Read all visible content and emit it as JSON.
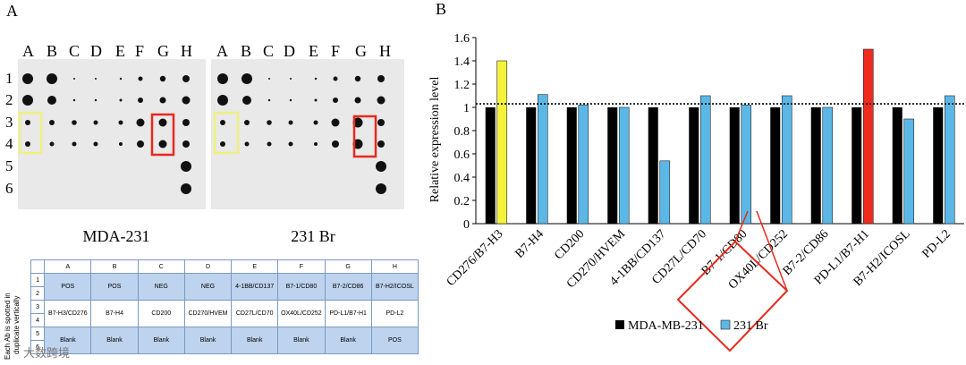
{
  "panel_a": {
    "letter": "A",
    "columns": [
      "A",
      "B",
      "C",
      "D",
      "E",
      "F",
      "G",
      "H"
    ],
    "rows": [
      "1",
      "2",
      "3",
      "4",
      "5",
      "6"
    ],
    "blot_left_label": "MDA-231",
    "blot_right_label": "231 Br"
  },
  "panel_b": {
    "letter": "B"
  },
  "table": {
    "side_label_line1": "Each Ab is spotted in",
    "side_label_line2": "duplicate vertically",
    "headers": [
      "A",
      "B",
      "C",
      "D",
      "E",
      "F",
      "G",
      "H"
    ],
    "rows": [
      {
        "num": "1",
        "cells": [
          "POS",
          "POS",
          "NEG",
          "NEG",
          "4-1BB/CD137",
          "B7-1/CD80",
          "B7-2/CD86",
          "B7-H2/ICOSL"
        ]
      },
      {
        "num": "2",
        "cells": [
          "",
          "",
          "",
          "",
          "",
          "",
          "",
          ""
        ]
      },
      {
        "num": "3",
        "cells": [
          "B7-H3/CD276",
          "B7-H4",
          "CD200",
          "CD270/HVEM",
          "CD27L/CD70",
          "OX40L/CD252",
          "PD-L1/B7-H1",
          "PD-L2"
        ]
      },
      {
        "num": "4",
        "cells": [
          "",
          "",
          "",
          "",
          "",
          "",
          "",
          ""
        ]
      },
      {
        "num": "5",
        "cells": [
          "Blank",
          "Blank",
          "Blank",
          "Blank",
          "Blank",
          "Blank",
          "Blank",
          "POS"
        ]
      },
      {
        "num": "6",
        "cells": [
          "",
          "",
          "",
          "",
          "",
          "",
          "",
          ""
        ]
      }
    ]
  },
  "watermark": "大数跨境",
  "chart_data": {
    "type": "bar",
    "categories": [
      "CD276/B7-H3",
      "B7-H4",
      "CD200",
      "CD270/HVEM",
      "4-1BB/CD137",
      "CD27L/CD70",
      "B7-1/CD80",
      "OX40L/CD252",
      "B7-2/CD86",
      "PD-L1/B7-H1",
      "B7-H2/ICOSL",
      "PD-L2"
    ],
    "series": [
      {
        "name": "MDA-MB-231",
        "color": "#000000",
        "values": [
          1,
          1,
          1,
          1,
          1,
          1,
          1,
          1,
          1,
          1,
          1,
          1
        ]
      },
      {
        "name": "231 Br",
        "color": "#5bb8e6",
        "values": [
          1.4,
          1.11,
          1.02,
          1.0,
          0.54,
          1.1,
          1.02,
          1.1,
          1.0,
          1.5,
          0.9,
          1.1
        ]
      }
    ],
    "highlight": {
      "0": "#f4f23a",
      "9": "#ee2b1c"
    },
    "ylabel": "Relative expression level",
    "ylim": [
      0,
      1.6
    ],
    "yticks": [
      "0",
      "0.2",
      "0.4",
      "0.6",
      "0.8",
      "1",
      "1.2",
      "1.4",
      "1.6"
    ],
    "reference_line": 1.03,
    "legend_placement": "bottom"
  }
}
